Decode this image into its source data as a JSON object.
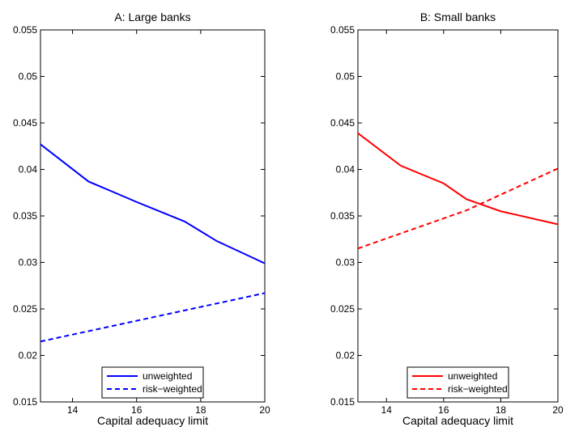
{
  "chart_data": [
    {
      "type": "line",
      "title": "A: Large banks",
      "xlabel": "Capital adequacy limit",
      "ylabel": "",
      "xlim": [
        13,
        20
      ],
      "ylim": [
        0.015,
        0.055
      ],
      "xticks": [
        14,
        16,
        18,
        20
      ],
      "yticks": [
        0.015,
        0.02,
        0.025,
        0.03,
        0.035,
        0.04,
        0.045,
        0.05,
        0.055
      ],
      "ytick_labels": [
        "0.015",
        "0.02",
        "0.025",
        "0.03",
        "0.035",
        "0.04",
        "0.045",
        "0.05",
        "0.055"
      ],
      "grid": false,
      "legend_position": "bottom-center",
      "series": [
        {
          "name": "unweighted",
          "color": "#0000ff",
          "dash": "solid",
          "x": [
            13,
            14.5,
            16,
            17.5,
            18.5,
            20
          ],
          "values": [
            0.0427,
            0.0387,
            0.0365,
            0.0344,
            0.0323,
            0.0299
          ]
        },
        {
          "name": "risk−weighted",
          "color": "#0000ff",
          "dash": "dashed",
          "x": [
            13,
            20
          ],
          "values": [
            0.0215,
            0.0267
          ]
        }
      ]
    },
    {
      "type": "line",
      "title": "B: Small banks",
      "xlabel": "Capital adequacy limit",
      "ylabel": "",
      "xlim": [
        13,
        20
      ],
      "ylim": [
        0.015,
        0.055
      ],
      "xticks": [
        14,
        16,
        18,
        20
      ],
      "yticks": [
        0.015,
        0.02,
        0.025,
        0.03,
        0.035,
        0.04,
        0.045,
        0.05,
        0.055
      ],
      "ytick_labels": [
        "0.015",
        "0.02",
        "0.025",
        "0.03",
        "0.035",
        "0.04",
        "0.045",
        "0.05",
        "0.055"
      ],
      "grid": false,
      "legend_position": "bottom-center",
      "series": [
        {
          "name": "unweighted",
          "color": "#ff0000",
          "dash": "solid",
          "x": [
            13,
            14.5,
            16,
            16.8,
            18,
            20
          ],
          "values": [
            0.0439,
            0.0404,
            0.0385,
            0.0368,
            0.0355,
            0.0341
          ]
        },
        {
          "name": "risk−weighted",
          "color": "#ff0000",
          "dash": "dashed",
          "x": [
            13,
            16.8,
            20
          ],
          "values": [
            0.0315,
            0.0356,
            0.0401
          ]
        }
      ]
    }
  ]
}
